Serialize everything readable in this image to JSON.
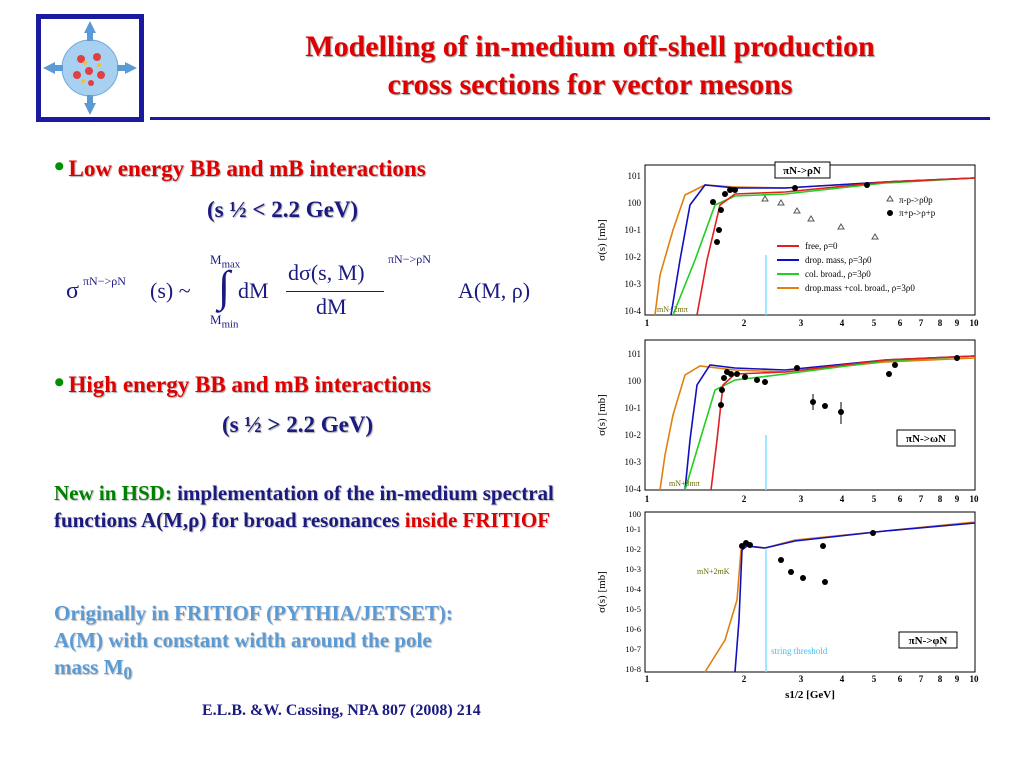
{
  "title": {
    "line1": "Modelling of in-medium off-shell production",
    "line2": "cross sections for vector mesons"
  },
  "bullet_symbol": "•",
  "section1": {
    "heading": "Low energy BB and mB interactions",
    "sub": "(s ½ < 2.2 GeV)"
  },
  "formula": {
    "sigma": "σ",
    "sup": "πN−>ρN",
    "arg": "(s) ~",
    "int_upper": "M",
    "int_upper_sub": "max",
    "int_lower": "M",
    "int_lower_sub": "min",
    "dm": "dM",
    "numerator": "dσ(s, M)",
    "denominator": "dM",
    "rhs": "A(M, ρ)"
  },
  "section2": {
    "heading": "High energy BB and mB interactions",
    "sub": "(s ½ > 2.2 GeV)"
  },
  "para1": {
    "prefix": "New in HSD:",
    "rest": " implementation of the in-medium spectral functions A(M,ρ) for broad resonances",
    "red": "inside FRITIOF"
  },
  "para2": {
    "line1": "Originally in FRITIOF (PYTHIA/JETSET):",
    "line2": "A(M) with constant width around the pole",
    "line3": "mass M",
    "sub0": "0"
  },
  "reference": "E.L.B. &W. Cassing, NPA 807 (2008) 214",
  "colors": {
    "free": "#e02020",
    "drop": "#1010c0",
    "col": "#20d020",
    "both": "#e08010",
    "threshold": "#80e0ff"
  },
  "chart_data": [
    {
      "type": "line",
      "title": "πN->ρN",
      "ylabel": "σ(s) [mb]",
      "xlim": [
        1,
        10
      ],
      "log_x": true,
      "log_y": true,
      "yticks": [
        "10-4",
        "10-3",
        "10-2",
        "10-1",
        "100",
        "101"
      ],
      "xticks": [
        "1",
        "2",
        "3",
        "4",
        "5",
        "6",
        "7",
        "8",
        "9",
        "10"
      ],
      "threshold_label": "mN+2mπ",
      "legend": {
        "series": [
          "free, ρ=0",
          "drop. mass, ρ=3ρ0",
          "col. broad., ρ=3ρ0",
          "drop.mass +col. broad., ρ=3ρ0"
        ],
        "markers": [
          "π-p->ρ0p",
          "π+p->ρ+p"
        ]
      }
    },
    {
      "type": "line",
      "title": "πN->ωN",
      "ylabel": "σ(s) [mb]",
      "xlim": [
        1,
        10
      ],
      "log_x": true,
      "log_y": true,
      "yticks": [
        "10-4",
        "10-3",
        "10-2",
        "10-1",
        "100",
        "101"
      ],
      "xticks": [
        "1",
        "2",
        "3",
        "4",
        "5",
        "6",
        "7",
        "8",
        "9",
        "10"
      ],
      "threshold_label": "mN+3mπ"
    },
    {
      "type": "line",
      "title": "πN->φN",
      "ylabel": "σ(s) [mb]",
      "xlabel": "s1/2 [GeV]",
      "xlim": [
        1,
        10
      ],
      "log_x": true,
      "log_y": true,
      "yticks": [
        "10-8",
        "10-7",
        "10-6",
        "10-5",
        "10-4",
        "10-3",
        "10-2",
        "10-1",
        "100"
      ],
      "xticks": [
        "1",
        "2",
        "3",
        "4",
        "5",
        "6",
        "7",
        "8",
        "9",
        "10"
      ],
      "threshold_label": "mN+2mK",
      "string_threshold": "string threshold"
    }
  ]
}
